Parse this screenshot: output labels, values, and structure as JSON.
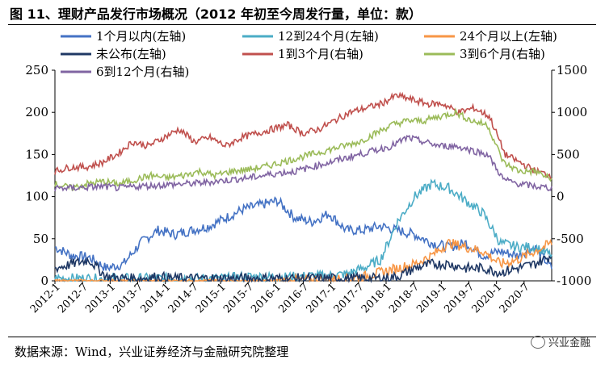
{
  "title": "图 11、理财产品发行市场概况（2012 年初至今周发行量，单位：款）",
  "source": "数据来源：Wind，兴业证券经济与金融研究院整理",
  "watermark": "兴业金融",
  "chart_data": {
    "type": "line",
    "y_left": {
      "ticks": [
        0,
        50,
        100,
        150,
        200,
        250
      ],
      "ylim": [
        0,
        250
      ]
    },
    "y_right": {
      "ticks": [
        -1000,
        -500,
        0,
        500,
        1000,
        1500
      ],
      "ylim": [
        -1000,
        1500
      ]
    },
    "x_ticks": [
      "2012-1",
      "2012-7",
      "2013-1",
      "2013-7",
      "2014-1",
      "2014-7",
      "2015-1",
      "2015-7",
      "2016-1",
      "2016-7",
      "2017-1",
      "2017-7",
      "2018-1",
      "2018-7",
      "2019-1",
      "2019-7",
      "2020-1",
      "2020-7"
    ],
    "series": [
      {
        "name": "1个月以内(左轴)",
        "axis": "left",
        "color": "#4472C4",
        "values": [
          40,
          30,
          28,
          15,
          20,
          45,
          60,
          55,
          60,
          65,
          75,
          85,
          90,
          95,
          75,
          70,
          80,
          60,
          60,
          65,
          60,
          55,
          45,
          40,
          45,
          30,
          35,
          30,
          40,
          15
        ]
      },
      {
        "name": "12到24个月(左轴)",
        "axis": "left",
        "color": "#4BACC6",
        "values": [
          3,
          3,
          3,
          2,
          3,
          3,
          3,
          3,
          3,
          3,
          3,
          5,
          5,
          4,
          5,
          6,
          6,
          8,
          15,
          25,
          70,
          100,
          115,
          110,
          95,
          80,
          45,
          40,
          40,
          30
        ]
      },
      {
        "name": "24个月以上(左轴)",
        "axis": "left",
        "color": "#F79646",
        "values": [
          0,
          0,
          0,
          0,
          0,
          0,
          0,
          0,
          0,
          0,
          0,
          0,
          0,
          0,
          1,
          1,
          2,
          3,
          5,
          10,
          15,
          20,
          30,
          45,
          40,
          35,
          20,
          25,
          35,
          45
        ]
      },
      {
        "name": "未公布(左轴)",
        "axis": "left",
        "color": "#1F3864",
        "values": [
          15,
          20,
          25,
          5,
          3,
          3,
          5,
          3,
          3,
          3,
          3,
          3,
          3,
          3,
          3,
          3,
          3,
          3,
          3,
          3,
          5,
          15,
          20,
          20,
          15,
          15,
          10,
          15,
          20,
          30
        ]
      },
      {
        "name": "1到3个月(右轴)",
        "axis": "right",
        "color": "#C0504D",
        "values": [
          300,
          350,
          350,
          400,
          500,
          650,
          600,
          700,
          800,
          650,
          700,
          600,
          700,
          750,
          800,
          850,
          750,
          800,
          900,
          1000,
          1050,
          1100,
          1200,
          1150,
          1100,
          1100,
          1000,
          1050,
          950,
          500,
          400,
          300,
          250
        ]
      },
      {
        "name": "3到6个月(右轴)",
        "axis": "right",
        "color": "#9BBB59",
        "values": [
          150,
          100,
          150,
          180,
          150,
          200,
          250,
          220,
          250,
          300,
          250,
          300,
          320,
          350,
          400,
          450,
          500,
          550,
          600,
          650,
          750,
          850,
          900,
          900,
          950,
          1000,
          900,
          850,
          400,
          300,
          300,
          200
        ]
      },
      {
        "name": "6到12个月(右轴)",
        "axis": "right",
        "color": "#8064A2",
        "values": [
          100,
          100,
          110,
          120,
          100,
          120,
          130,
          140,
          150,
          160,
          180,
          200,
          220,
          250,
          280,
          300,
          350,
          400,
          450,
          500,
          550,
          600,
          700,
          650,
          600,
          600,
          550,
          500,
          200,
          150,
          120,
          100
        ]
      }
    ]
  }
}
